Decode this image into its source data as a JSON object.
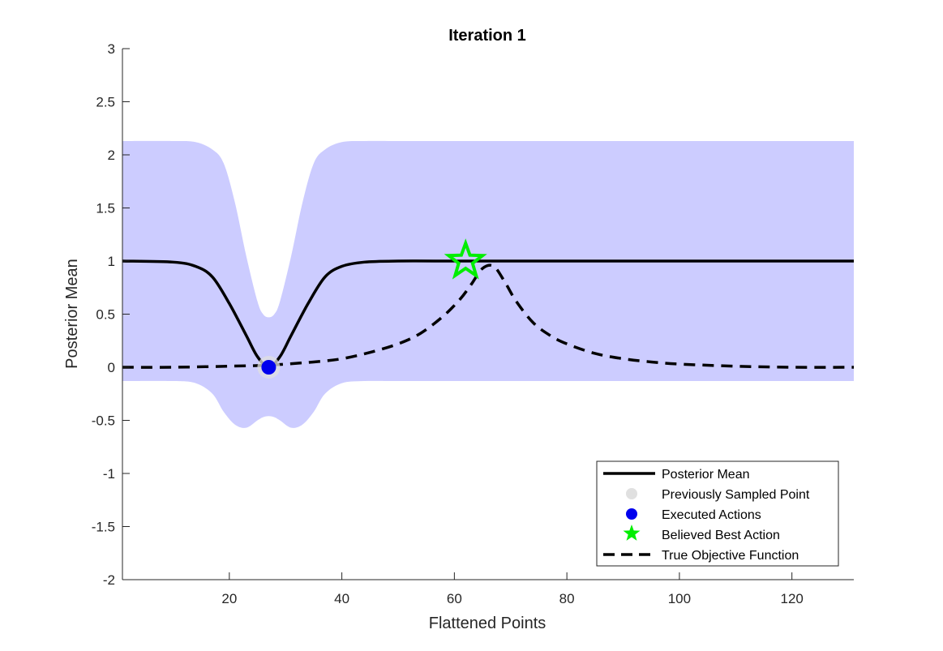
{
  "chart_data": {
    "type": "line",
    "title": "Iteration 1",
    "xlabel": "Flattened Points",
    "ylabel": "Posterior Mean",
    "xlim": [
      1,
      131
    ],
    "ylim": [
      -2,
      3
    ],
    "xticks": [
      20,
      40,
      60,
      80,
      100,
      120
    ],
    "xtick_labels": [
      "20",
      "40",
      "60",
      "80",
      "100",
      "120"
    ],
    "yticks": [
      3,
      2.5,
      2,
      1.5,
      1,
      0.5,
      0,
      -0.5,
      -1,
      -1.5,
      -2
    ],
    "ytick_labels": [
      "3",
      "2.5",
      "2",
      "1.5",
      "1",
      "0.5",
      "0",
      "-0.5",
      "-1",
      "-1.5",
      "-2"
    ],
    "grid": false,
    "legend_position": "bottom-right",
    "legend": [
      {
        "label": "Posterior Mean",
        "symbol": "solid-line"
      },
      {
        "label": "Previously Sampled Point",
        "symbol": "circle"
      },
      {
        "label": "Executed Actions",
        "symbol": "circle"
      },
      {
        "label": "Believed Best Action",
        "symbol": "star"
      },
      {
        "label": "True Objective Function",
        "symbol": "dashed-line"
      }
    ],
    "colors": {
      "posterior_mean": "#000000",
      "confidence_band": "#ccccff",
      "previously_sampled": "#e0e0e0",
      "executed": "#0000ee",
      "best_action": "#00ee00",
      "true_objective": "#000000"
    },
    "series": [
      {
        "name": "Posterior Mean",
        "style": "solid",
        "x": [
          1,
          10,
          14,
          17,
          20,
          23,
          25,
          27,
          29,
          31,
          34,
          37,
          40,
          44,
          50,
          60,
          70,
          80,
          100,
          120,
          131
        ],
        "y": [
          1,
          0.99,
          0.95,
          0.85,
          0.6,
          0.3,
          0.1,
          0.0,
          0.1,
          0.3,
          0.6,
          0.85,
          0.95,
          0.99,
          1,
          1,
          1,
          1,
          1,
          1,
          1
        ]
      },
      {
        "name": "True Objective Function",
        "style": "dashed",
        "x": [
          1,
          10,
          20,
          27,
          35,
          40,
          45,
          50,
          54,
          58,
          61,
          63,
          65,
          67,
          69,
          71,
          74,
          77,
          80,
          85,
          90,
          95,
          100,
          110,
          120,
          131
        ],
        "y": [
          0,
          0,
          0.01,
          0.02,
          0.05,
          0.08,
          0.14,
          0.22,
          0.32,
          0.48,
          0.64,
          0.78,
          0.93,
          0.95,
          0.8,
          0.62,
          0.42,
          0.3,
          0.22,
          0.13,
          0.08,
          0.05,
          0.03,
          0.01,
          0,
          0
        ]
      }
    ],
    "band": {
      "name": "Confidence Band",
      "x": [
        1,
        10,
        14,
        17,
        19,
        21,
        23,
        25,
        26,
        27,
        28,
        29,
        31,
        33,
        35,
        37,
        40,
        44,
        50,
        60,
        80,
        100,
        120,
        131
      ],
      "upper": [
        2.13,
        2.13,
        2.12,
        2.05,
        1.92,
        1.55,
        1.05,
        0.62,
        0.5,
        0.47,
        0.5,
        0.62,
        1.05,
        1.55,
        1.92,
        2.05,
        2.12,
        2.13,
        2.13,
        2.13,
        2.13,
        2.13,
        2.13,
        2.13
      ],
      "lower": [
        -0.13,
        -0.13,
        -0.15,
        -0.25,
        -0.42,
        -0.54,
        -0.57,
        -0.5,
        -0.47,
        -0.46,
        -0.47,
        -0.5,
        -0.57,
        -0.54,
        -0.42,
        -0.25,
        -0.15,
        -0.13,
        -0.13,
        -0.13,
        -0.13,
        -0.13,
        -0.13,
        -0.13
      ]
    },
    "points": {
      "previously_sampled": [
        {
          "x": 27,
          "y": 0
        }
      ],
      "executed_actions": [
        {
          "x": 27,
          "y": 0
        }
      ],
      "believed_best_action": [
        {
          "x": 62,
          "y": 1
        }
      ]
    }
  }
}
